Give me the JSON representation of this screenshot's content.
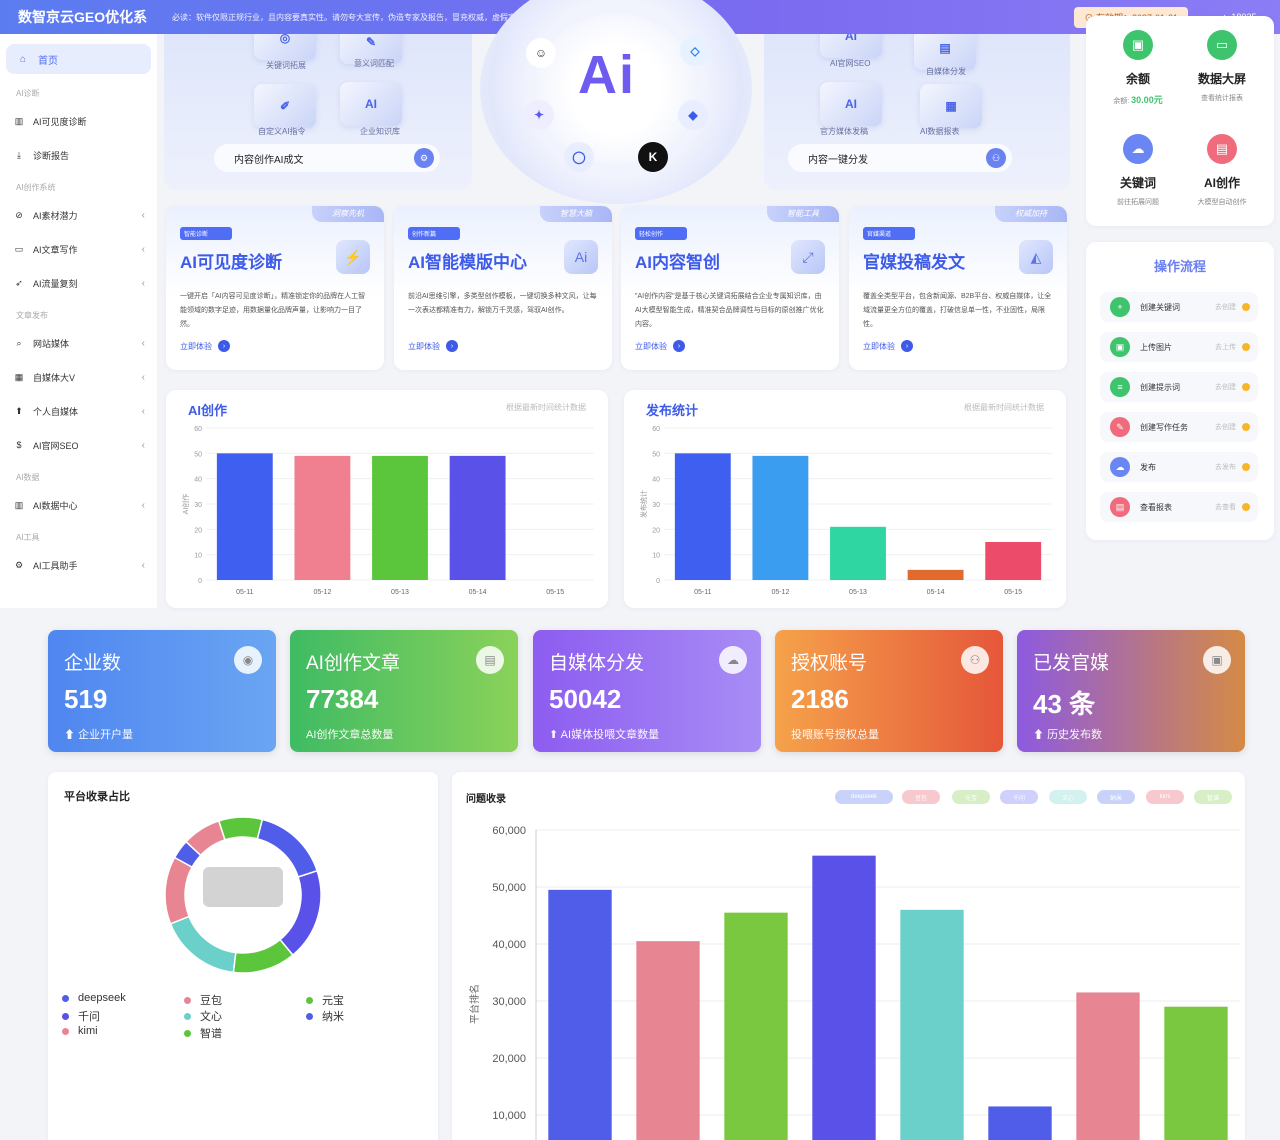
{
  "topbar": {
    "brand": "数智京云GEO优化系",
    "notice": "必读：软件仅限正规行业，且内容要真实性。请勿夸大宣传，伪造专家及报告，冒充权威，虚假宣传等手段，勿违反广告法，否则后果自负。",
    "expire": "有效期：2027-01-21",
    "user": "18035"
  },
  "sidebar": {
    "home": "首页",
    "groups": [
      {
        "title": "AI诊断",
        "items": [
          {
            "label": "AI可见度诊断",
            "icon": "bar-chart-icon",
            "arrow": false
          },
          {
            "label": "诊断报告",
            "icon": "download-icon",
            "arrow": false
          }
        ]
      },
      {
        "title": "AI创作系统",
        "items": [
          {
            "label": "AI素材潜力",
            "icon": "compass-icon",
            "arrow": true
          },
          {
            "label": "AI文章写作",
            "icon": "folder-icon",
            "arrow": true
          },
          {
            "label": "AI流量复刻",
            "icon": "rocket-icon",
            "arrow": true
          }
        ]
      },
      {
        "title": "文章发布",
        "items": [
          {
            "label": "网站媒体",
            "icon": "search-icon",
            "arrow": true
          },
          {
            "label": "自媒体大V",
            "icon": "grid-icon",
            "arrow": true
          },
          {
            "label": "个人自媒体",
            "icon": "up-arrow-icon",
            "arrow": true
          },
          {
            "label": "AI官网SEO",
            "icon": "dollar-icon",
            "arrow": true
          }
        ]
      },
      {
        "title": "AI数据",
        "items": [
          {
            "label": "AI数据中心",
            "icon": "bar-chart-icon",
            "arrow": true
          }
        ]
      },
      {
        "title": "AI工具",
        "items": [
          {
            "label": "AI工具助手",
            "icon": "gear-icon",
            "arrow": true
          }
        ]
      }
    ]
  },
  "hero": {
    "left_tiles": [
      "关键词拓展",
      "意义词匹配",
      "自定义AI指令",
      "企业知识库"
    ],
    "left_bar": "内容创作AI成文",
    "right_tiles": [
      "AI官网SEO",
      "自媒体分发",
      "官方媒体发稿",
      "AI数据报表"
    ],
    "right_bar": "内容一键分发",
    "logo": "Ai"
  },
  "features": [
    {
      "badge": "智能诊断",
      "corner": "洞察先机",
      "title": "AI可见度诊断",
      "desc": "一键开启「AI内容可见度诊断」，精准锁定你的品牌在人工智能领域的数字足迹，用数据量化品牌声量，让影响力一目了然。",
      "link": "立即体验"
    },
    {
      "badge": "创作新篇",
      "corner": "智慧大脑",
      "title": "AI智能模版中心",
      "desc": "前沿AI思维引擎，多类型创作模板，一键切换多种文风，让每一次表达都精准有力，解锁万千灵感，驾驭AI创作。",
      "link": "立即体验"
    },
    {
      "badge": "轻松创作",
      "corner": "智能工具",
      "title": "AI内容智创",
      "desc": "\"AI创作内容\"是基于核心关键词拓展结合企业专属知识库，由AI大模型智能生成，精准契合品牌调性与目标的原创推广优化内容。",
      "link": "立即体验"
    },
    {
      "badge": "官媒渠道",
      "corner": "权威加持",
      "title": "官媒投稿发文",
      "desc": "覆盖全类型平台，包含新闻源、B2B平台、权威自媒体，让全域流量更全方位的覆盖，打破信息单一性，不业固性，局限性。",
      "link": "立即体验"
    }
  ],
  "account": {
    "items": [
      {
        "label": "余额",
        "sub_label": "余额: ",
        "sub_value": "30.00元",
        "icon": "wallet-icon",
        "color": "#3ec46d"
      },
      {
        "label": "数据大屏",
        "sub": "查看统计报表",
        "icon": "monitor-icon",
        "color": "#3ec46d"
      },
      {
        "label": "关键词",
        "sub": "前往拓展问题",
        "icon": "cloud-icon",
        "color": "#6a86f3"
      },
      {
        "label": "AI创作",
        "sub": "大模型自动创作",
        "icon": "briefcase-icon",
        "color": "#f06b7c"
      }
    ]
  },
  "process": {
    "title": "操作流程",
    "steps": [
      {
        "label": "创建关键词",
        "status": "去创建",
        "color": "#3ec46d"
      },
      {
        "label": "上传图片",
        "status": "去上传",
        "color": "#3ec46d"
      },
      {
        "label": "创建提示词",
        "status": "去创建",
        "color": "#3ec46d"
      },
      {
        "label": "创建写作任务",
        "status": "去创建",
        "color": "#f06b7c"
      },
      {
        "label": "发布",
        "status": "去发布",
        "color": "#6a86f3"
      },
      {
        "label": "查看报表",
        "status": "去查看",
        "color": "#f06b7c"
      }
    ]
  },
  "stats": [
    {
      "title": "企业数",
      "value": "519",
      "label": "企业开户量",
      "arrow": true,
      "gradient": "linear-gradient(90deg,#4f86f0,#6aa5f3)"
    },
    {
      "title": "AI创作文章",
      "value": "77384",
      "label": "AI创作文章总数量",
      "arrow": false,
      "gradient": "linear-gradient(90deg,#3fbb63,#8ad25a)"
    },
    {
      "title": "自媒体分发",
      "value": "50042",
      "label": "AI媒体投喂文章数量",
      "arrow": true,
      "gradient": "linear-gradient(90deg,#8d5cf0,#a88df5)"
    },
    {
      "title": "授权账号",
      "value": "2186",
      "label": "投喂账号授权总量",
      "arrow": false,
      "gradient": "linear-gradient(90deg,#f5a24a,#e5573a)"
    },
    {
      "title": "已发官媒",
      "value": "43 条",
      "label": "历史发布数",
      "arrow": true,
      "gradient": "linear-gradient(90deg,#8d5ae0,#d58a45)"
    }
  ],
  "donut": {
    "title": "平台收录占比"
  },
  "chips": [
    "deepseek",
    "豆包",
    "元宝",
    "千问",
    "文心",
    "纳米",
    "kimi",
    "智谱"
  ],
  "chart_data": [
    {
      "type": "bar",
      "title": "AI创作",
      "subtitle": "根据最新时间统计数据",
      "ylabel": "AI创作",
      "categories": [
        "05-11",
        "05-12",
        "05-13",
        "05-14",
        "05-15"
      ],
      "values": [
        50,
        49,
        49,
        49,
        0
      ],
      "colors": [
        "#3f5ff0",
        "#f0808f",
        "#5bc63b",
        "#5a52e8",
        "#3f5ff0"
      ],
      "ylim": [
        0,
        60
      ],
      "yticks": [
        0,
        10,
        20,
        30,
        40,
        50,
        60
      ]
    },
    {
      "type": "bar",
      "title": "发布统计",
      "subtitle": "根据最新时间统计数据",
      "ylabel": "发布统计",
      "categories": [
        "05-11",
        "05-12",
        "05-13",
        "05-14",
        "05-15"
      ],
      "values": [
        50,
        49,
        21,
        4,
        15
      ],
      "colors": [
        "#3f5ff0",
        "#3a9df0",
        "#2fd6a1",
        "#e26a2c",
        "#ec4c6a"
      ],
      "ylim": [
        0,
        60
      ],
      "yticks": [
        0,
        10,
        20,
        30,
        40,
        50,
        60
      ]
    },
    {
      "type": "pie",
      "series": [
        {
          "name": "deepseek",
          "value": 16,
          "color": "#4f5de8"
        },
        {
          "name": "豆包",
          "value": 14,
          "color": "#e88593"
        },
        {
          "name": "元宝",
          "value": 13,
          "color": "#5bc63b"
        },
        {
          "name": "千问",
          "value": 19,
          "color": "#5a52e8"
        },
        {
          "name": "文心",
          "value": 17,
          "color": "#6ad0c9"
        },
        {
          "name": "纳米",
          "value": 4,
          "color": "#4f5de8"
        },
        {
          "name": "kimi",
          "value": 8,
          "color": "#e88593"
        },
        {
          "name": "智谱",
          "value": 9,
          "color": "#5bc63b"
        }
      ]
    },
    {
      "type": "bar",
      "title": "问题收录",
      "ylabel": "平台排名",
      "categories": [
        "deepseek",
        "豆包",
        "元宝",
        "千问",
        "文心",
        "纳米",
        "kimi",
        "智谱"
      ],
      "values": [
        49500,
        40500,
        45500,
        55500,
        46000,
        11500,
        31500,
        29000
      ],
      "colors": [
        "#4f5de8",
        "#e88593",
        "#79c83f",
        "#5a52e8",
        "#6ad0c9",
        "#4f5de8",
        "#e88593",
        "#79c83f"
      ],
      "yticks": [
        "10,000",
        "20,000",
        "30,000",
        "40,000",
        "50,000",
        "60,000"
      ]
    }
  ]
}
